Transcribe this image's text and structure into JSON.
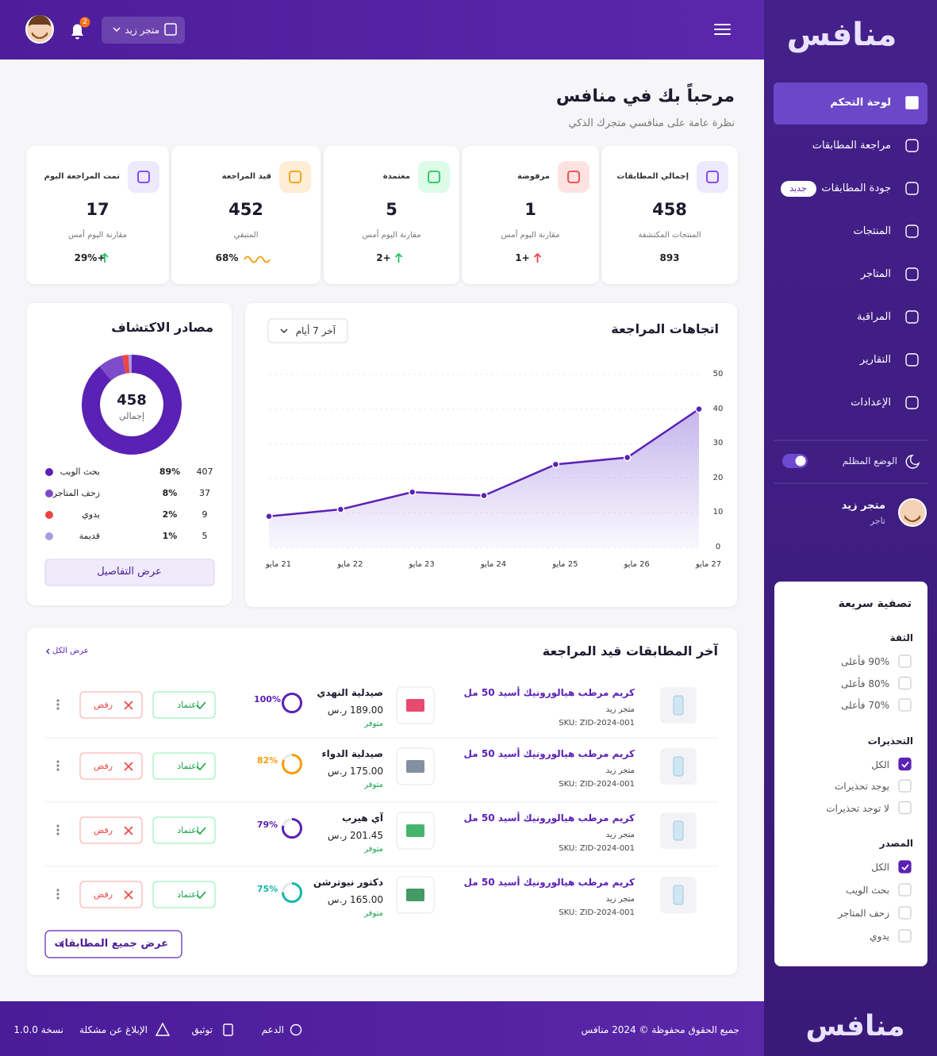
{
  "header": {
    "store": "متجر زيد",
    "notifications": 2
  },
  "sidebar": {
    "logo": "منافس",
    "nav": [
      {
        "label": "لوحة التحكم",
        "active": true
      },
      {
        "label": "مراجعة المطابقات"
      },
      {
        "label": "جودة المطابقات",
        "badge": "جديد"
      },
      {
        "label": "المنتجات"
      },
      {
        "label": "المتاجر"
      },
      {
        "label": "المراقبة"
      },
      {
        "label": "التقارير"
      },
      {
        "label": "الإعدادات"
      }
    ],
    "dark_mode": "الوضع المظلم",
    "user": {
      "name": "متجر زيد",
      "role": "تاجر"
    },
    "filter": {
      "title": "تصفية سريعة",
      "groups": [
        {
          "title": "الثقة",
          "options": [
            "90% فأعلى",
            "80% فأعلى",
            "70% فأعلى"
          ],
          "checked": [
            false,
            false,
            false
          ]
        },
        {
          "title": "التحذيرات",
          "options": [
            "الكل",
            "يوجد تحذيرات",
            "لا توجد تحذيرات"
          ],
          "checked": [
            true,
            false,
            false
          ]
        },
        {
          "title": "المصدر",
          "options": [
            "الكل",
            "بحث الويب",
            "زحف المتاجر",
            "يدوي"
          ],
          "checked": [
            true,
            false,
            false,
            false
          ]
        }
      ]
    },
    "bottom_logo": "منافس"
  },
  "welcome": {
    "title": "مرحباً بك في منافس",
    "subtitle": "نظرة عامة على منافسي متجرك الذكي"
  },
  "stats": [
    {
      "label": "إجمالي المطابقات",
      "value": 458,
      "sub": "المنتجات المكتشفة",
      "change": "893",
      "icon_color": "#7c3aed",
      "icon_bg": "#ede9fe"
    },
    {
      "label": "مرفوضة",
      "value": 1,
      "sub": "مقارنة اليوم أمس",
      "change": "+1",
      "change_icon": "arrow-up",
      "change_color": "#ef4444",
      "icon_color": "#ef4444",
      "icon_bg": "#fee2e2"
    },
    {
      "label": "معتمدة",
      "value": 5,
      "sub": "مقارنة اليوم أمس",
      "change": "+2",
      "change_icon": "arrow-up",
      "change_color": "#22c55e",
      "icon_color": "#22c55e",
      "icon_bg": "#dcfce7"
    },
    {
      "label": "قيد المراجعة",
      "value": 452,
      "sub": "المتبقي",
      "change": "68%",
      "change_icon": "wave",
      "change_color": "#f59e0b",
      "icon_color": "#f59e0b",
      "icon_bg": "#ffedd5"
    },
    {
      "label": "تمت المراجعة اليوم",
      "value": 17,
      "sub": "مقارنة اليوم أمس",
      "change": "+29%",
      "change_icon": "arrow-up",
      "change_color": "#22c55e",
      "icon_color": "#7c3aed",
      "icon_bg": "#ede9fe"
    }
  ],
  "chart_data": [
    {
      "type": "line",
      "title": "اتجاهات المراجعة",
      "range_selector": "آخر 7 أيام",
      "categories": [
        "21 مايو",
        "22 مايو",
        "23 مايو",
        "24 مايو",
        "25 مايو",
        "26 مايو",
        "27 مايو"
      ],
      "values": [
        9,
        11,
        16,
        15,
        24,
        26,
        40
      ],
      "ylim": [
        0,
        50
      ],
      "yticks": [
        0,
        10,
        20,
        30,
        40,
        50
      ],
      "grid": true,
      "color": "#5b21b6"
    },
    {
      "type": "pie",
      "title": "مصادر الاكتشاف",
      "total": 458,
      "total_label": "إجمالي",
      "categories": [
        "بحث الويب",
        "زحف المتاجر",
        "يدوي",
        "قديمة"
      ],
      "values": [
        407,
        37,
        9,
        5
      ],
      "share_labels": [
        "89%",
        "8%",
        "2%",
        "1%"
      ],
      "colors": [
        "#5b21b6",
        "#7e4cc9",
        "#ef4444",
        "#a99be0"
      ],
      "button": "عرض التفاصيل"
    }
  ],
  "table": {
    "title": "آخر المطابقات قيد المراجعة",
    "view_all": "عرض الكل",
    "footer_button": "عرض جميع المطابقات",
    "rows": [
      {
        "product": "كريم مرطب هيالورونيك أسيد 50 مل",
        "store": "متجر زيد",
        "sku": "SKU: ZID-2024-001",
        "competitor": "صيدلية النهدي",
        "price": "189.00 ر.س",
        "status": "متوفر",
        "match": 100,
        "match_label": "100%",
        "match_color": "#5b21b6",
        "approve": "اعتماد",
        "reject": "رفض"
      },
      {
        "product": "كريم مرطب هيالورونيك أسيد 50 مل",
        "store": "متجر زيد",
        "sku": "SKU: ZID-2024-001",
        "competitor": "صيدلية الدواء",
        "price": "175.00 ر.س",
        "status": "متوفر",
        "match": 82,
        "match_label": "82%",
        "match_color": "#f59e0b",
        "approve": "اعتماد",
        "reject": "رفض"
      },
      {
        "product": "كريم مرطب هيالورونيك أسيد 50 مل",
        "store": "متجر زيد",
        "sku": "SKU: ZID-2024-001",
        "competitor": "آي هيرب",
        "price": "201.45 ر.س",
        "status": "متوفر",
        "match": 79,
        "match_label": "79%",
        "match_color": "#5b21b6",
        "approve": "اعتماد",
        "reject": "رفض"
      },
      {
        "product": "كريم مرطب هيالورونيك أسيد 50 مل",
        "store": "متجر زيد",
        "sku": "SKU: ZID-2024-001",
        "competitor": "دكتور نيوترشن",
        "price": "165.00 ر.س",
        "status": "متوفر",
        "match": 75,
        "match_label": "75%",
        "match_color": "#14b8a6",
        "approve": "اعتماد",
        "reject": "رفض"
      }
    ]
  },
  "footer": {
    "copyright": "جميع الحقوق محفوظة © 2024 منافس",
    "support": "الدعم",
    "docs": "توثيق",
    "report": "الإبلاغ عن مشكلة",
    "version": "نسخة 1.0.0"
  }
}
